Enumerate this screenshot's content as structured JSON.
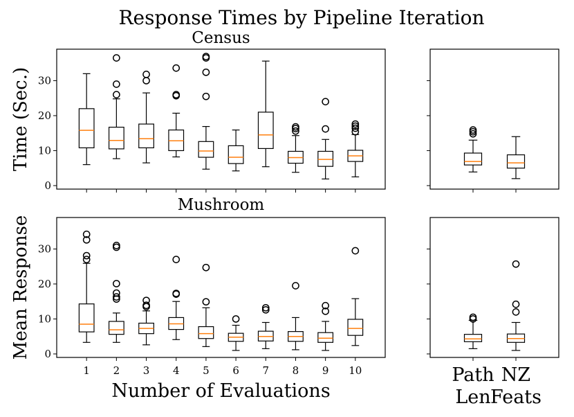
{
  "figure_title": "Response Times by Pipeline Iteration",
  "colors": {
    "box": "#000000",
    "median": "#ff7f0e",
    "background": "#ffffff"
  },
  "chart_data": [
    {
      "type": "boxplot",
      "panel": "top-left",
      "title": "Census",
      "ylabel": "Time (Sec.)",
      "xlabel": "",
      "ylim": [
        -1,
        39
      ],
      "yticks": [
        0,
        10,
        20,
        30
      ],
      "categories": [
        "1",
        "2",
        "3",
        "4",
        "5",
        "6",
        "7",
        "8",
        "9",
        "10"
      ],
      "show_xticklabels": false,
      "boxes": [
        {
          "whislo": 6.0,
          "q1": 10.8,
          "med": 15.8,
          "q3": 22.0,
          "whishi": 32.0,
          "fliers": []
        },
        {
          "whislo": 7.7,
          "q1": 10.5,
          "med": 12.9,
          "q3": 16.7,
          "whishi": 24.8,
          "fliers": [
            26.0,
            29.0,
            36.5
          ]
        },
        {
          "whislo": 6.5,
          "q1": 10.8,
          "med": 13.4,
          "q3": 17.6,
          "whishi": 26.5,
          "fliers": [
            30.0,
            31.8
          ]
        },
        {
          "whislo": 8.2,
          "q1": 10.0,
          "med": 12.8,
          "q3": 15.9,
          "whishi": 20.7,
          "fliers": [
            25.7,
            26.0,
            33.6
          ]
        },
        {
          "whislo": 4.7,
          "q1": 8.1,
          "med": 9.9,
          "q3": 12.6,
          "whishi": 16.9,
          "fliers": [
            25.5,
            32.4,
            36.5,
            36.9
          ]
        },
        {
          "whislo": 4.2,
          "q1": 6.3,
          "med": 8.1,
          "q3": 11.4,
          "whishi": 15.9,
          "fliers": []
        },
        {
          "whislo": 5.4,
          "q1": 10.6,
          "med": 14.5,
          "q3": 21.0,
          "whishi": 35.6,
          "fliers": []
        },
        {
          "whislo": 3.8,
          "q1": 6.4,
          "med": 8.0,
          "q3": 9.8,
          "whishi": 14.3,
          "fliers": [
            15.6,
            16.3,
            16.8
          ]
        },
        {
          "whislo": 1.9,
          "q1": 5.5,
          "med": 7.5,
          "q3": 9.8,
          "whishi": 13.2,
          "fliers": [
            16.2,
            24.0
          ]
        },
        {
          "whislo": 2.5,
          "q1": 6.9,
          "med": 8.5,
          "q3": 10.1,
          "whishi": 14.6,
          "fliers": [
            15.4,
            16.4,
            17.0,
            17.6
          ]
        }
      ]
    },
    {
      "type": "boxplot",
      "panel": "top-right",
      "title": "",
      "ylabel": "",
      "xlabel": "",
      "ylim": [
        -1,
        39
      ],
      "yticks": [
        0,
        10,
        20,
        30
      ],
      "show_yticklabels": false,
      "categories": [
        "Path Len",
        "NZ Feats"
      ],
      "show_xticklabels": false,
      "boxes": [
        {
          "whislo": 3.9,
          "q1": 5.9,
          "med": 6.9,
          "q3": 9.3,
          "whishi": 13.0,
          "fliers": [
            14.8,
            15.4,
            15.9
          ]
        },
        {
          "whislo": 2.0,
          "q1": 5.0,
          "med": 6.5,
          "q3": 8.8,
          "whishi": 14.0,
          "fliers": []
        }
      ]
    },
    {
      "type": "boxplot",
      "panel": "bottom-left",
      "title": "Mushroom",
      "ylabel": "Mean Response",
      "xlabel": "Number of Evaluations",
      "ylim": [
        -1,
        39
      ],
      "yticks": [
        0,
        10,
        20,
        30
      ],
      "categories": [
        "1",
        "2",
        "3",
        "4",
        "5",
        "6",
        "7",
        "8",
        "9",
        "10"
      ],
      "show_xticklabels": true,
      "boxes": [
        {
          "whislo": 3.3,
          "q1": 6.3,
          "med": 8.5,
          "q3": 14.3,
          "whishi": 25.9,
          "fliers": [
            27.0,
            28.1,
            32.6,
            34.2
          ]
        },
        {
          "whislo": 3.3,
          "q1": 5.6,
          "med": 6.9,
          "q3": 9.3,
          "whishi": 11.7,
          "fliers": [
            15.7,
            16.3,
            17.4,
            20.1,
            30.5,
            31.0
          ]
        },
        {
          "whislo": 2.6,
          "q1": 5.8,
          "med": 7.3,
          "q3": 8.8,
          "whishi": 12.3,
          "fliers": [
            13.5,
            13.9,
            15.3
          ]
        },
        {
          "whislo": 4.1,
          "q1": 7.0,
          "med": 8.6,
          "q3": 10.4,
          "whishi": 15.0,
          "fliers": [
            17.1,
            17.3,
            27.0
          ]
        },
        {
          "whislo": 2.1,
          "q1": 4.4,
          "med": 5.8,
          "q3": 7.8,
          "whishi": 13.2,
          "fliers": [
            14.9,
            24.7
          ]
        },
        {
          "whislo": 1.0,
          "q1": 3.6,
          "med": 4.8,
          "q3": 5.9,
          "whishi": 8.2,
          "fliers": [
            10.0
          ]
        },
        {
          "whislo": 1.5,
          "q1": 3.7,
          "med": 5.0,
          "q3": 6.5,
          "whishi": 9.0,
          "fliers": [
            12.6,
            13.2
          ]
        },
        {
          "whislo": 1.2,
          "q1": 3.6,
          "med": 5.0,
          "q3": 6.4,
          "whishi": 10.4,
          "fliers": [
            19.5
          ]
        },
        {
          "whislo": 1.0,
          "q1": 3.3,
          "med": 4.5,
          "q3": 6.1,
          "whishi": 9.3,
          "fliers": [
            12.2,
            13.8
          ]
        },
        {
          "whislo": 2.4,
          "q1": 5.3,
          "med": 7.3,
          "q3": 9.9,
          "whishi": 15.8,
          "fliers": [
            29.5
          ]
        }
      ]
    },
    {
      "type": "boxplot",
      "panel": "bottom-right",
      "title": "",
      "ylabel": "",
      "xlabel": "",
      "ylim": [
        -1,
        39
      ],
      "yticks": [
        0,
        10,
        20,
        30
      ],
      "show_yticklabels": false,
      "categories": [
        "Path Len",
        "NZ Feats"
      ],
      "xticklabels_lines": [
        [
          "Path",
          "Len"
        ],
        [
          "NZ",
          "Feats"
        ]
      ],
      "show_xticklabels": true,
      "boxes": [
        {
          "whislo": 1.5,
          "q1": 3.5,
          "med": 4.3,
          "q3": 5.6,
          "whishi": 9.6,
          "fliers": [
            10.0,
            10.5
          ]
        },
        {
          "whislo": 1.0,
          "q1": 3.3,
          "med": 4.4,
          "q3": 5.7,
          "whishi": 9.0,
          "fliers": [
            12.0,
            14.2,
            25.7
          ]
        }
      ]
    }
  ]
}
